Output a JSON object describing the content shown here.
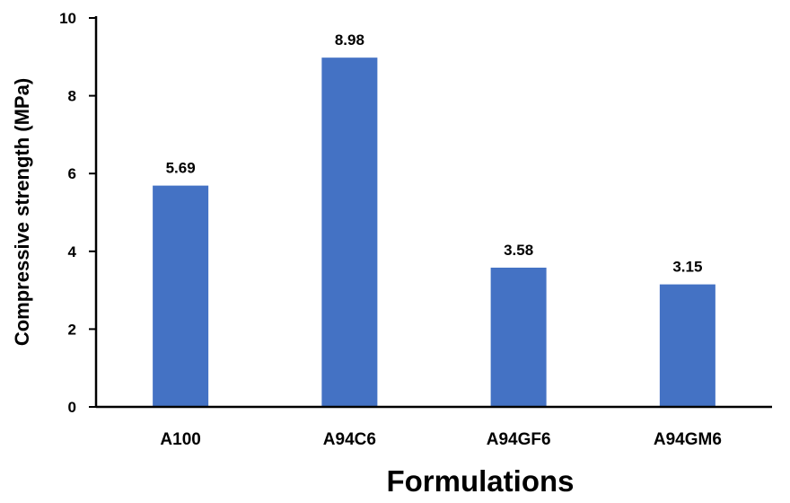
{
  "chart_data": {
    "type": "bar",
    "title": "",
    "xlabel": "Formulations",
    "ylabel": "Compressive strength (MPa)",
    "categories": [
      "A100",
      "A94C6",
      "A94GF6",
      "A94GM6"
    ],
    "values": [
      5.69,
      8.98,
      3.58,
      3.15
    ],
    "data_labels": [
      "5.69",
      "8.98",
      "3.58",
      "3.15"
    ],
    "ylim": [
      0,
      10
    ],
    "yticks": [
      0,
      2,
      4,
      6,
      8,
      10
    ],
    "grid": false,
    "legend": "none",
    "bar_color": "#4472c4"
  }
}
